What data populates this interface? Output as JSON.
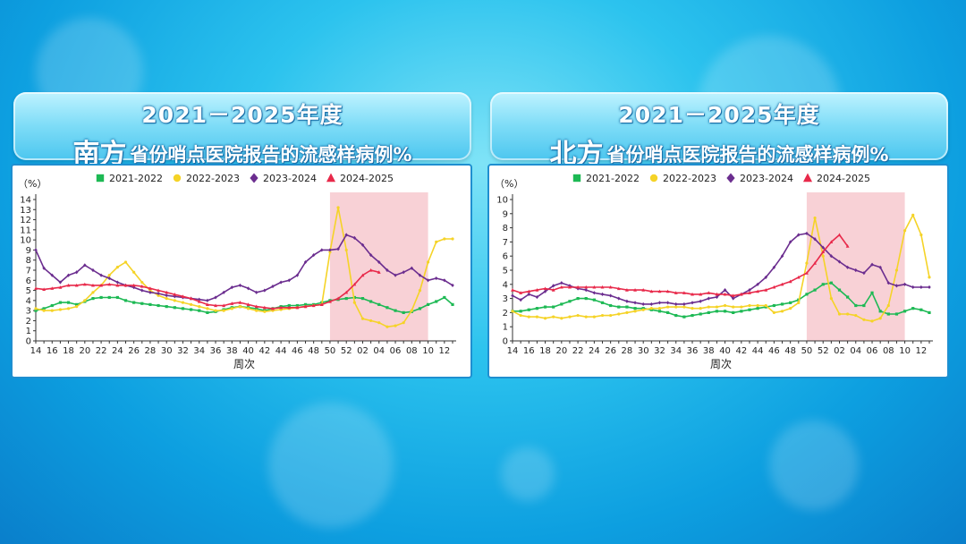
{
  "chart_data": [
    {
      "type": "line",
      "title_line1": "2021－2025年度",
      "region": "南方",
      "title_line2": "省份哨点医院报告的流感样病例%",
      "ylabel": "（%）",
      "xlabel": "周次",
      "ylim": [
        0,
        14
      ],
      "yticks": [
        0,
        1,
        2,
        3,
        4,
        5,
        6,
        7,
        8,
        9,
        10,
        11,
        12,
        13,
        14
      ],
      "weeks": [
        "14",
        "15",
        "16",
        "17",
        "18",
        "19",
        "20",
        "21",
        "22",
        "23",
        "24",
        "25",
        "26",
        "27",
        "28",
        "29",
        "30",
        "31",
        "32",
        "33",
        "34",
        "35",
        "36",
        "37",
        "38",
        "39",
        "40",
        "41",
        "42",
        "43",
        "44",
        "45",
        "46",
        "47",
        "48",
        "49",
        "50",
        "51",
        "52",
        "01",
        "02",
        "03",
        "04",
        "05",
        "06",
        "07",
        "08",
        "09",
        "10",
        "11",
        "12",
        "13"
      ],
      "tick_labels": [
        "14",
        "16",
        "18",
        "20",
        "22",
        "24",
        "26",
        "28",
        "30",
        "32",
        "34",
        "36",
        "38",
        "40",
        "42",
        "44",
        "46",
        "48",
        "50",
        "52",
        "02",
        "04",
        "06",
        "08",
        "10",
        "12"
      ],
      "highlight": {
        "from": "50",
        "to": "10"
      },
      "legend_position": "top-center",
      "series": [
        {
          "name": "2021-2022",
          "color": "#1db954",
          "marker": "square",
          "values": [
            3.0,
            3.2,
            3.5,
            3.8,
            3.8,
            3.6,
            3.9,
            4.2,
            4.3,
            4.3,
            4.3,
            4.0,
            3.8,
            3.7,
            3.6,
            3.5,
            3.4,
            3.3,
            3.2,
            3.1,
            3.0,
            2.8,
            2.9,
            3.1,
            3.3,
            3.4,
            3.3,
            3.2,
            3.0,
            3.2,
            3.4,
            3.5,
            3.5,
            3.6,
            3.6,
            3.8,
            4.0,
            4.1,
            4.2,
            4.3,
            4.2,
            3.9,
            3.6,
            3.3,
            3.0,
            2.8,
            2.9,
            3.2,
            3.6,
            3.9,
            4.3,
            3.6
          ]
        },
        {
          "name": "2022-2023",
          "color": "#f5d327",
          "marker": "circle",
          "values": [
            3.2,
            3.0,
            3.0,
            3.1,
            3.2,
            3.4,
            4.0,
            4.8,
            5.5,
            6.5,
            7.3,
            7.8,
            6.8,
            5.8,
            5.0,
            4.5,
            4.2,
            4.0,
            3.8,
            3.6,
            3.4,
            3.2,
            3.0,
            3.0,
            3.2,
            3.4,
            3.2,
            3.0,
            2.9,
            3.0,
            3.1,
            3.2,
            3.3,
            3.4,
            3.5,
            3.6,
            8.8,
            13.2,
            9.0,
            3.8,
            2.2,
            2.0,
            1.8,
            1.4,
            1.5,
            1.8,
            3.0,
            5.0,
            7.8,
            9.8,
            10.1,
            10.1
          ]
        },
        {
          "name": "2023-2024",
          "color": "#6b2d8f",
          "marker": "diamond",
          "values": [
            9.0,
            7.2,
            6.5,
            5.8,
            6.5,
            6.8,
            7.5,
            7.0,
            6.5,
            6.2,
            5.8,
            5.5,
            5.3,
            5.0,
            4.8,
            4.7,
            4.5,
            4.4,
            4.3,
            4.2,
            4.1,
            4.0,
            4.3,
            4.8,
            5.3,
            5.5,
            5.2,
            4.8,
            5.0,
            5.4,
            5.8,
            6.0,
            6.5,
            7.8,
            8.5,
            9.0,
            9.0,
            9.1,
            10.5,
            10.2,
            9.5,
            8.5,
            7.8,
            7.0,
            6.5,
            6.8,
            7.2,
            6.5,
            6.0,
            6.2,
            6.0,
            5.5
          ]
        },
        {
          "name": "2024-2025",
          "color": "#e8294a",
          "marker": "triangle",
          "values": [
            5.2,
            5.1,
            5.2,
            5.3,
            5.5,
            5.5,
            5.6,
            5.5,
            5.5,
            5.6,
            5.5,
            5.5,
            5.5,
            5.4,
            5.2,
            5.0,
            4.8,
            4.6,
            4.4,
            4.2,
            3.9,
            3.6,
            3.5,
            3.5,
            3.7,
            3.8,
            3.6,
            3.4,
            3.3,
            3.2,
            3.3,
            3.3,
            3.3,
            3.4,
            3.5,
            3.6,
            3.9,
            4.2,
            4.8,
            5.6,
            6.5,
            7.0,
            6.8
          ]
        }
      ]
    },
    {
      "type": "line",
      "title_line1": "2021－2025年度",
      "region": "北方",
      "title_line2": "省份哨点医院报告的流感样病例%",
      "ylabel": "（%）",
      "xlabel": "周次",
      "ylim": [
        0,
        10
      ],
      "yticks": [
        0,
        1,
        2,
        3,
        4,
        5,
        6,
        7,
        8,
        9,
        10
      ],
      "weeks": [
        "14",
        "15",
        "16",
        "17",
        "18",
        "19",
        "20",
        "21",
        "22",
        "23",
        "24",
        "25",
        "26",
        "27",
        "28",
        "29",
        "30",
        "31",
        "32",
        "33",
        "34",
        "35",
        "36",
        "37",
        "38",
        "39",
        "40",
        "41",
        "42",
        "43",
        "44",
        "45",
        "46",
        "47",
        "48",
        "49",
        "50",
        "51",
        "52",
        "01",
        "02",
        "03",
        "04",
        "05",
        "06",
        "07",
        "08",
        "09",
        "10",
        "11",
        "12",
        "13"
      ],
      "tick_labels": [
        "14",
        "16",
        "18",
        "20",
        "22",
        "24",
        "26",
        "28",
        "30",
        "32",
        "34",
        "36",
        "38",
        "40",
        "42",
        "44",
        "46",
        "48",
        "50",
        "52",
        "02",
        "04",
        "06",
        "08",
        "10",
        "12"
      ],
      "highlight": {
        "from": "50",
        "to": "10"
      },
      "legend_position": "top-center",
      "series": [
        {
          "name": "2021-2022",
          "color": "#1db954",
          "marker": "square",
          "values": [
            2.1,
            2.1,
            2.2,
            2.3,
            2.4,
            2.4,
            2.6,
            2.8,
            3.0,
            3.0,
            2.9,
            2.7,
            2.5,
            2.4,
            2.4,
            2.3,
            2.3,
            2.2,
            2.1,
            2.0,
            1.8,
            1.7,
            1.8,
            1.9,
            2.0,
            2.1,
            2.1,
            2.0,
            2.1,
            2.2,
            2.3,
            2.4,
            2.5,
            2.6,
            2.7,
            2.9,
            3.3,
            3.6,
            4.0,
            4.1,
            3.6,
            3.1,
            2.5,
            2.5,
            3.4,
            2.1,
            1.9,
            1.9,
            2.1,
            2.3,
            2.2,
            2.0
          ]
        },
        {
          "name": "2022-2023",
          "color": "#f5d327",
          "marker": "circle",
          "values": [
            2.1,
            1.8,
            1.7,
            1.7,
            1.6,
            1.7,
            1.6,
            1.7,
            1.8,
            1.7,
            1.7,
            1.8,
            1.8,
            1.9,
            2.0,
            2.1,
            2.2,
            2.3,
            2.3,
            2.4,
            2.4,
            2.4,
            2.3,
            2.3,
            2.4,
            2.4,
            2.5,
            2.4,
            2.4,
            2.5,
            2.5,
            2.5,
            2.0,
            2.1,
            2.3,
            2.7,
            5.5,
            8.7,
            6.0,
            3.0,
            1.9,
            1.9,
            1.8,
            1.5,
            1.4,
            1.6,
            2.5,
            5.0,
            7.8,
            8.9,
            7.5,
            4.5
          ]
        },
        {
          "name": "2023-2024",
          "color": "#6b2d8f",
          "marker": "diamond",
          "values": [
            3.2,
            2.9,
            3.3,
            3.1,
            3.5,
            3.9,
            4.1,
            3.9,
            3.7,
            3.6,
            3.4,
            3.3,
            3.2,
            3.0,
            2.8,
            2.7,
            2.6,
            2.6,
            2.7,
            2.7,
            2.6,
            2.6,
            2.7,
            2.8,
            3.0,
            3.1,
            3.6,
            3.0,
            3.3,
            3.6,
            4.0,
            4.5,
            5.2,
            6.0,
            7.0,
            7.5,
            7.6,
            7.2,
            6.6,
            6.0,
            5.6,
            5.2,
            5.0,
            4.8,
            5.4,
            5.2,
            4.1,
            3.9,
            4.0,
            3.8,
            3.8,
            3.8
          ]
        },
        {
          "name": "2024-2025",
          "color": "#e8294a",
          "marker": "triangle",
          "values": [
            3.6,
            3.4,
            3.5,
            3.6,
            3.7,
            3.6,
            3.8,
            3.8,
            3.8,
            3.8,
            3.8,
            3.8,
            3.8,
            3.7,
            3.6,
            3.6,
            3.6,
            3.5,
            3.5,
            3.5,
            3.4,
            3.4,
            3.3,
            3.3,
            3.4,
            3.3,
            3.3,
            3.2,
            3.3,
            3.4,
            3.5,
            3.6,
            3.8,
            4.0,
            4.2,
            4.5,
            4.8,
            5.5,
            6.3,
            7.0,
            7.5,
            6.7
          ]
        }
      ]
    }
  ]
}
